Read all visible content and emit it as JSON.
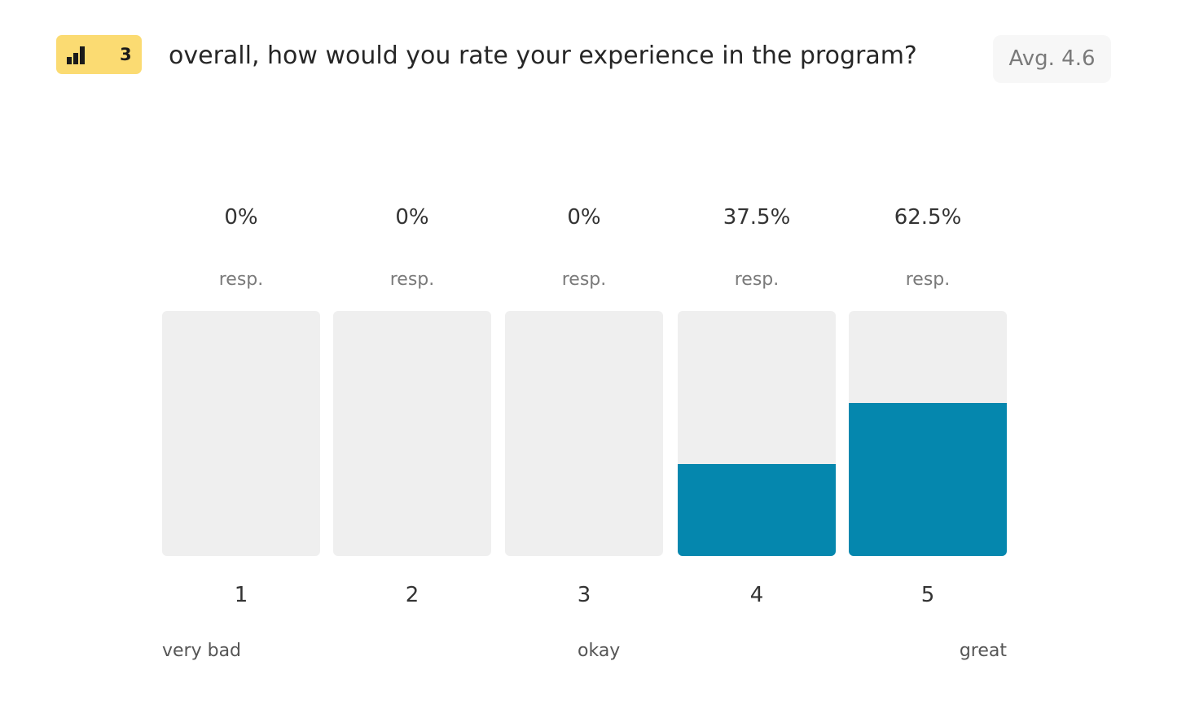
{
  "badge": {
    "icon": "bar-chart-icon",
    "number": "3",
    "color": "#fbdb72"
  },
  "question": "overall, how would you rate your experience in the program?",
  "average_label": "Avg. 4.6",
  "response_unit": "resp.",
  "scale_labels": {
    "low": "very bad",
    "mid": "okay",
    "high": "great"
  },
  "colors": {
    "bar_fill": "#0587ae",
    "bar_track": "#efefef"
  },
  "chart_data": {
    "type": "bar",
    "categories": [
      "1",
      "2",
      "3",
      "4",
      "5"
    ],
    "values": [
      0,
      0,
      0,
      37.5,
      62.5
    ],
    "value_labels": [
      "0%",
      "0%",
      "0%",
      "37.5%",
      "62.5%"
    ],
    "ylim": [
      0,
      100
    ],
    "grid": false
  }
}
